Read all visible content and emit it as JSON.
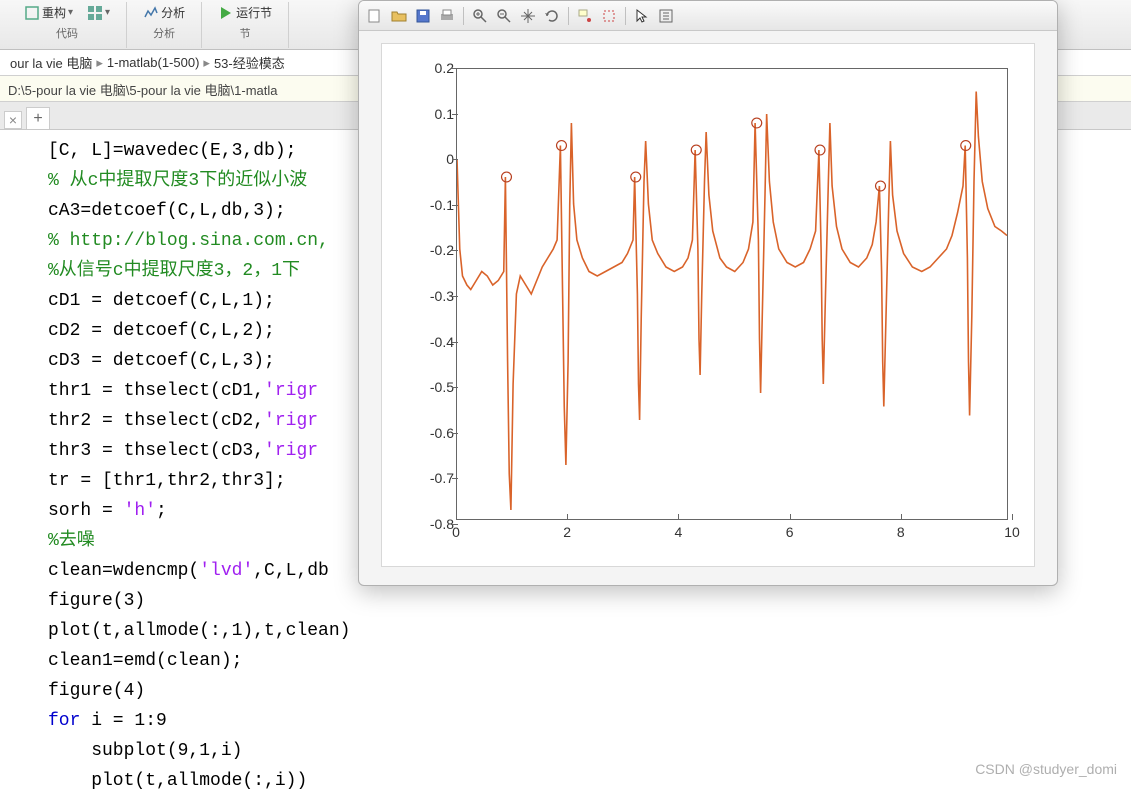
{
  "ribbon": {
    "group1_btn1": "重构",
    "group1_label": "代码",
    "group2_btn1": "分析",
    "group2_label": "分析",
    "group3_btn1": "运行节",
    "group3_label": "节"
  },
  "breadcrumb": {
    "seg1": "our la vie 电脑",
    "seg2": "1-matlab(1-500)",
    "seg3": "53-经验模态"
  },
  "pathbar": "D:\\5-pour la vie 电脑\\5-pour la vie 电脑\\1-matla",
  "tabs": {
    "close": "×",
    "add": "+"
  },
  "code": {
    "l1a": "[C, L]=wavedec(E,3,db);",
    "l2a": "% 从c中提取尺度3下的近似小波",
    "l3a": "cA3=detcoef(C,L,db,3);",
    "l4a": "% http://blog.sina.com.cn,",
    "l5a": "%从信号c中提取尺度3，2，1下",
    "l6a": "cD1 = detcoef(C,L,1);",
    "l7a": "cD2 = detcoef(C,L,2);",
    "l8a": "cD3 = detcoef(C,L,3);",
    "l9a": "thr1 = thselect(cD1,",
    "l9b": "'rigr",
    "l10a": "thr2 = thselect(cD2,",
    "l10b": "'rigr",
    "l11a": "thr3 = thselect(cD3,",
    "l11b": "'rigr",
    "l12a": "tr = [thr1,thr2,thr3];",
    "l13a": "sorh = ",
    "l13b": "'h'",
    "l13c": ";",
    "l14a": "%去噪",
    "l15a": "clean=wdencmp(",
    "l15b": "'lvd'",
    "l15c": ",C,L,db",
    "l16a": "figure(3)",
    "l17a": "plot(t,allmode(:,1),t,clean)",
    "l18a": "clean1=emd(clean);",
    "l19a": "figure(4)",
    "l20a": "for",
    "l20b": " i = 1:9",
    "l21a": "    subplot(9,1,i)",
    "l22a": "    plot(t,allmode(:,i))"
  },
  "figure": {
    "line_color": "#d9632a",
    "marker_edge": "#b84020",
    "box_color": "#666666",
    "bg": "#ffffff",
    "xlim": [
      0,
      10
    ],
    "ylim": [
      -0.8,
      0.2
    ],
    "yticks": [
      -0.8,
      -0.7,
      -0.6,
      -0.5,
      -0.4,
      -0.3,
      -0.2,
      -0.1,
      0,
      0.1,
      0.2
    ],
    "xticks": [
      0,
      2,
      4,
      6,
      8,
      10
    ],
    "tick_fontsize": 14,
    "markers": [
      {
        "x": 0.9,
        "y": -0.04
      },
      {
        "x": 1.9,
        "y": 0.03
      },
      {
        "x": 3.25,
        "y": -0.04
      },
      {
        "x": 4.35,
        "y": 0.02
      },
      {
        "x": 5.45,
        "y": 0.08
      },
      {
        "x": 6.6,
        "y": 0.02
      },
      {
        "x": 7.7,
        "y": -0.06
      },
      {
        "x": 9.25,
        "y": 0.03
      }
    ],
    "signal": [
      [
        0,
        0.0
      ],
      [
        0.05,
        -0.2
      ],
      [
        0.1,
        -0.26
      ],
      [
        0.18,
        -0.28
      ],
      [
        0.25,
        -0.29
      ],
      [
        0.35,
        -0.27
      ],
      [
        0.45,
        -0.25
      ],
      [
        0.55,
        -0.26
      ],
      [
        0.65,
        -0.28
      ],
      [
        0.75,
        -0.27
      ],
      [
        0.85,
        -0.25
      ],
      [
        0.88,
        -0.04
      ],
      [
        0.92,
        -0.45
      ],
      [
        0.95,
        -0.7
      ],
      [
        0.98,
        -0.78
      ],
      [
        1.02,
        -0.5
      ],
      [
        1.08,
        -0.3
      ],
      [
        1.15,
        -0.26
      ],
      [
        1.25,
        -0.28
      ],
      [
        1.35,
        -0.3
      ],
      [
        1.45,
        -0.27
      ],
      [
        1.55,
        -0.24
      ],
      [
        1.65,
        -0.22
      ],
      [
        1.75,
        -0.2
      ],
      [
        1.82,
        -0.18
      ],
      [
        1.88,
        0.03
      ],
      [
        1.92,
        -0.3
      ],
      [
        1.95,
        -0.55
      ],
      [
        1.98,
        -0.68
      ],
      [
        2.02,
        -0.45
      ],
      [
        2.05,
        -0.1
      ],
      [
        2.08,
        0.08
      ],
      [
        2.12,
        -0.1
      ],
      [
        2.18,
        -0.18
      ],
      [
        2.28,
        -0.22
      ],
      [
        2.4,
        -0.25
      ],
      [
        2.55,
        -0.26
      ],
      [
        2.7,
        -0.25
      ],
      [
        2.85,
        -0.24
      ],
      [
        3.0,
        -0.23
      ],
      [
        3.1,
        -0.21
      ],
      [
        3.2,
        -0.18
      ],
      [
        3.23,
        -0.04
      ],
      [
        3.28,
        -0.3
      ],
      [
        3.3,
        -0.5
      ],
      [
        3.32,
        -0.58
      ],
      [
        3.35,
        -0.35
      ],
      [
        3.4,
        -0.05
      ],
      [
        3.43,
        0.04
      ],
      [
        3.48,
        -0.1
      ],
      [
        3.55,
        -0.18
      ],
      [
        3.65,
        -0.21
      ],
      [
        3.8,
        -0.24
      ],
      [
        3.95,
        -0.25
      ],
      [
        4.1,
        -0.24
      ],
      [
        4.2,
        -0.22
      ],
      [
        4.28,
        -0.18
      ],
      [
        4.33,
        0.02
      ],
      [
        4.38,
        -0.2
      ],
      [
        4.4,
        -0.4
      ],
      [
        4.42,
        -0.48
      ],
      [
        4.45,
        -0.3
      ],
      [
        4.5,
        -0.05
      ],
      [
        4.53,
        0.06
      ],
      [
        4.58,
        -0.08
      ],
      [
        4.65,
        -0.16
      ],
      [
        4.78,
        -0.22
      ],
      [
        4.9,
        -0.24
      ],
      [
        5.05,
        -0.25
      ],
      [
        5.2,
        -0.23
      ],
      [
        5.3,
        -0.2
      ],
      [
        5.38,
        -0.14
      ],
      [
        5.42,
        0.08
      ],
      [
        5.48,
        -0.18
      ],
      [
        5.5,
        -0.4
      ],
      [
        5.52,
        -0.52
      ],
      [
        5.55,
        -0.35
      ],
      [
        5.6,
        -0.08
      ],
      [
        5.63,
        0.1
      ],
      [
        5.68,
        -0.05
      ],
      [
        5.75,
        -0.14
      ],
      [
        5.85,
        -0.2
      ],
      [
        6.0,
        -0.23
      ],
      [
        6.15,
        -0.24
      ],
      [
        6.3,
        -0.23
      ],
      [
        6.42,
        -0.2
      ],
      [
        6.52,
        -0.16
      ],
      [
        6.58,
        0.02
      ],
      [
        6.62,
        -0.2
      ],
      [
        6.64,
        -0.4
      ],
      [
        6.66,
        -0.5
      ],
      [
        6.7,
        -0.3
      ],
      [
        6.75,
        -0.06
      ],
      [
        6.78,
        0.08
      ],
      [
        6.82,
        -0.06
      ],
      [
        6.9,
        -0.15
      ],
      [
        7.0,
        -0.2
      ],
      [
        7.15,
        -0.23
      ],
      [
        7.3,
        -0.24
      ],
      [
        7.45,
        -0.22
      ],
      [
        7.55,
        -0.19
      ],
      [
        7.62,
        -0.14
      ],
      [
        7.68,
        -0.06
      ],
      [
        7.72,
        -0.25
      ],
      [
        7.74,
        -0.45
      ],
      [
        7.76,
        -0.55
      ],
      [
        7.8,
        -0.35
      ],
      [
        7.85,
        -0.1
      ],
      [
        7.88,
        0.04
      ],
      [
        7.92,
        -0.08
      ],
      [
        8.0,
        -0.16
      ],
      [
        8.12,
        -0.21
      ],
      [
        8.28,
        -0.24
      ],
      [
        8.45,
        -0.25
      ],
      [
        8.6,
        -0.24
      ],
      [
        8.75,
        -0.22
      ],
      [
        8.9,
        -0.2
      ],
      [
        9.0,
        -0.17
      ],
      [
        9.1,
        -0.12
      ],
      [
        9.2,
        -0.06
      ],
      [
        9.24,
        0.03
      ],
      [
        9.28,
        -0.22
      ],
      [
        9.3,
        -0.45
      ],
      [
        9.32,
        -0.57
      ],
      [
        9.36,
        -0.35
      ],
      [
        9.4,
        -0.05
      ],
      [
        9.44,
        0.15
      ],
      [
        9.48,
        0.05
      ],
      [
        9.55,
        -0.05
      ],
      [
        9.65,
        -0.11
      ],
      [
        9.78,
        -0.15
      ],
      [
        9.9,
        -0.16
      ],
      [
        10.0,
        -0.17
      ]
    ]
  },
  "watermark": "CSDN @studyer_domi"
}
